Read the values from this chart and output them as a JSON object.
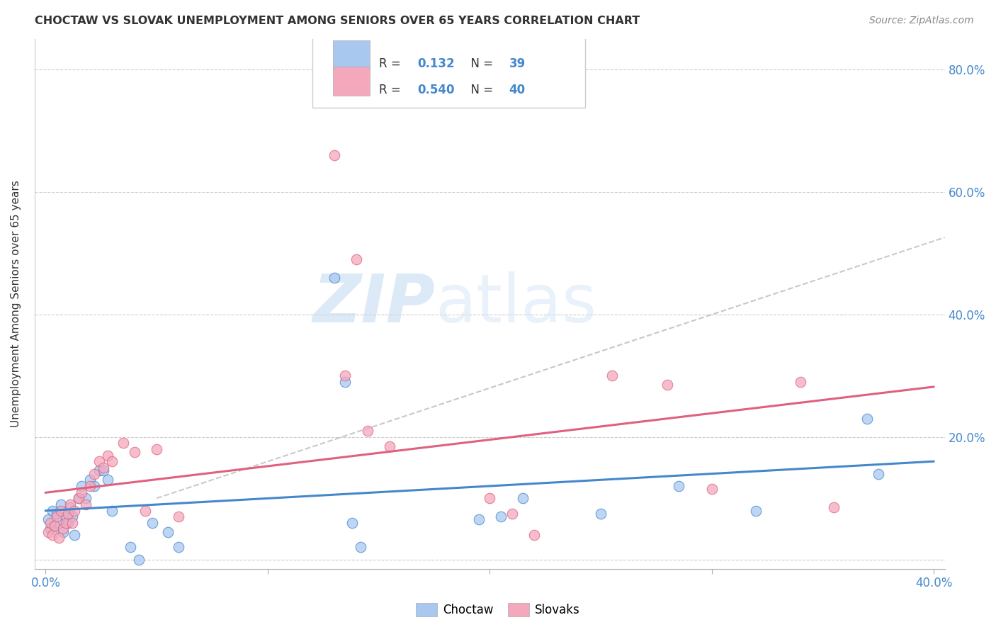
{
  "title": "CHOCTAW VS SLOVAK UNEMPLOYMENT AMONG SENIORS OVER 65 YEARS CORRELATION CHART",
  "source": "Source: ZipAtlas.com",
  "ylabel": "Unemployment Among Seniors over 65 years",
  "xlim": [
    -0.005,
    0.405
  ],
  "ylim": [
    -0.015,
    0.85
  ],
  "choctaw_R": 0.132,
  "choctaw_N": 39,
  "slovak_R": 0.54,
  "slovak_N": 40,
  "choctaw_color": "#A8C8F0",
  "slovak_color": "#F4A8BC",
  "choctaw_line_color": "#4488CC",
  "slovak_line_color": "#E06080",
  "background": "#FFFFFF",
  "watermark_zip": "ZIP",
  "watermark_atlas": "atlas",
  "choctaw_x": [
    0.001,
    0.002,
    0.003,
    0.004,
    0.005,
    0.006,
    0.007,
    0.008,
    0.009,
    0.01,
    0.011,
    0.012,
    0.013,
    0.015,
    0.016,
    0.018,
    0.02,
    0.022,
    0.024,
    0.026,
    0.028,
    0.03,
    0.038,
    0.042,
    0.048,
    0.055,
    0.06,
    0.13,
    0.135,
    0.138,
    0.142,
    0.195,
    0.205,
    0.215,
    0.25,
    0.285,
    0.32,
    0.37,
    0.375
  ],
  "choctaw_y": [
    0.065,
    0.05,
    0.08,
    0.055,
    0.075,
    0.06,
    0.09,
    0.045,
    0.07,
    0.06,
    0.085,
    0.07,
    0.04,
    0.1,
    0.12,
    0.1,
    0.13,
    0.12,
    0.145,
    0.145,
    0.13,
    0.08,
    0.02,
    0.0,
    0.06,
    0.045,
    0.02,
    0.46,
    0.29,
    0.06,
    0.02,
    0.065,
    0.07,
    0.1,
    0.075,
    0.12,
    0.08,
    0.23,
    0.14
  ],
  "slovak_x": [
    0.001,
    0.002,
    0.003,
    0.004,
    0.005,
    0.006,
    0.007,
    0.008,
    0.009,
    0.01,
    0.011,
    0.012,
    0.013,
    0.015,
    0.016,
    0.018,
    0.02,
    0.022,
    0.024,
    0.026,
    0.028,
    0.03,
    0.035,
    0.04,
    0.045,
    0.05,
    0.06,
    0.13,
    0.135,
    0.14,
    0.145,
    0.155,
    0.2,
    0.21,
    0.22,
    0.255,
    0.28,
    0.3,
    0.34,
    0.355
  ],
  "slovak_y": [
    0.045,
    0.06,
    0.04,
    0.055,
    0.07,
    0.035,
    0.08,
    0.05,
    0.06,
    0.075,
    0.09,
    0.06,
    0.08,
    0.1,
    0.11,
    0.09,
    0.12,
    0.14,
    0.16,
    0.15,
    0.17,
    0.16,
    0.19,
    0.175,
    0.08,
    0.18,
    0.07,
    0.66,
    0.3,
    0.49,
    0.21,
    0.185,
    0.1,
    0.075,
    0.04,
    0.3,
    0.285,
    0.115,
    0.29,
    0.085
  ]
}
